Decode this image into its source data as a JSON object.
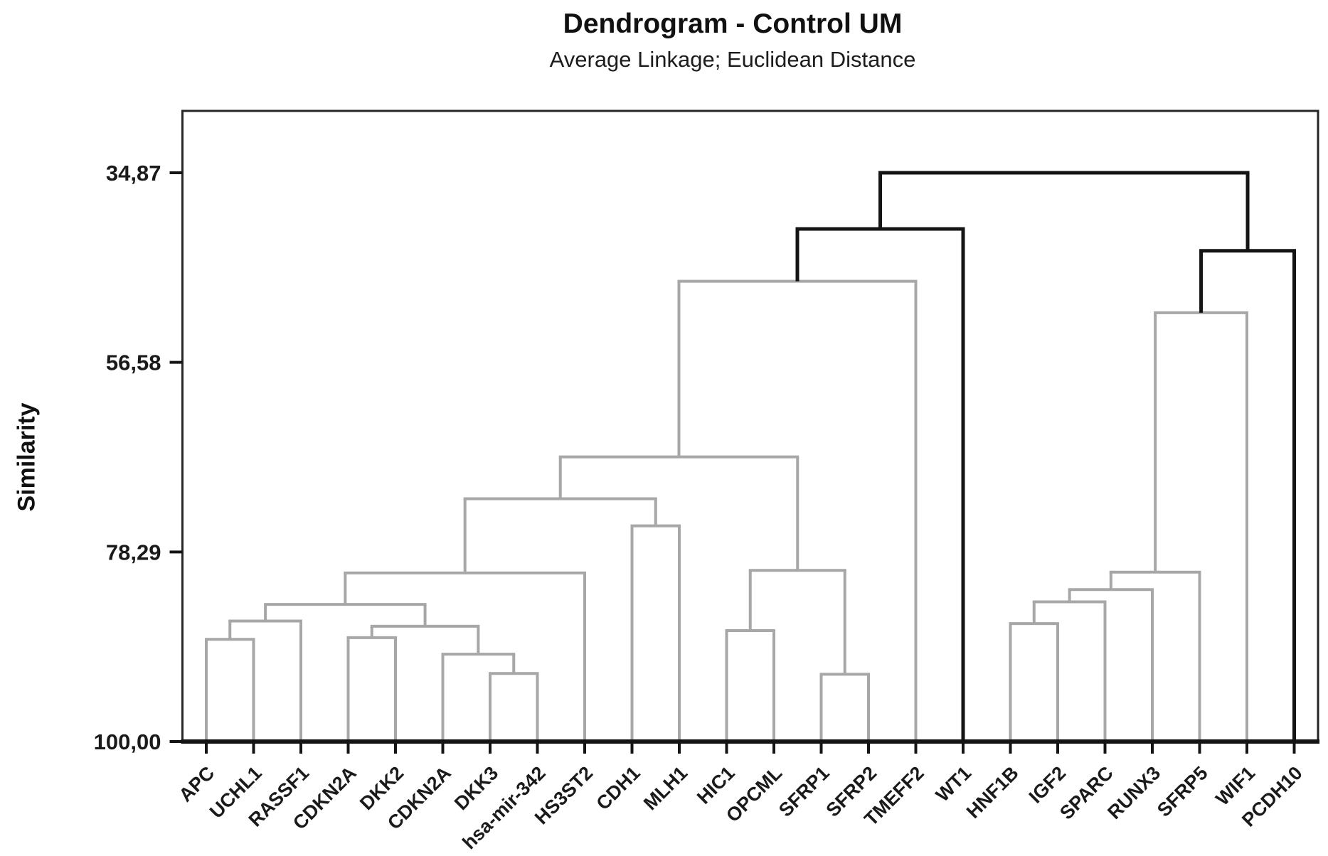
{
  "header": {
    "title": "Dendrogram - Control UM",
    "subtitle": "Average Linkage; Euclidean Distance"
  },
  "y_axis": {
    "label": "Similarity",
    "tick_labels": [
      "34,87",
      "56,58",
      "78,29",
      "100,00"
    ],
    "tick_values": [
      34.87,
      56.58,
      78.29,
      100.0
    ]
  },
  "colors": {
    "within_cluster_line": "#a7a7a7",
    "above_cut_line": "#141414",
    "border": "#262626",
    "text": "#1a1a1a",
    "background": "#ffffff"
  },
  "chart_data": {
    "type": "dendrogram",
    "title": "Dendrogram - Control UM",
    "subtitle": "Average Linkage; Euclidean Distance",
    "ylabel": "Similarity",
    "orientation": "leaves at bottom, similarity decreasing upward",
    "y_axis": {
      "top_value": 34.87,
      "bottom_value": 100.0,
      "tick_labels": [
        "34,87",
        "56,58",
        "78,29",
        "100,00"
      ],
      "tick_values": [
        34.87,
        56.58,
        78.29,
        100.0
      ]
    },
    "leaves": [
      "APC",
      "UCHL1",
      "RASSF1",
      "CDKN2A",
      "DKK2",
      "CDKN2A",
      "DKK3",
      "hsa-mir-342",
      "HS3ST2",
      "CDH1",
      "MLH1",
      "HIC1",
      "OPCML",
      "SFRP1",
      "SFRP2",
      "TMEFF2",
      "WT1",
      "HNF1B",
      "IGF2",
      "SPARC",
      "RUNX3",
      "SFRP5",
      "WIF1",
      "PCDH10"
    ],
    "merges": [
      {
        "a": 0,
        "b": 1,
        "similarity": 88.3,
        "color": "gray"
      },
      {
        "a": "m0",
        "b": 2,
        "similarity": 86.2,
        "color": "gray"
      },
      {
        "a": 3,
        "b": 4,
        "similarity": 88.1,
        "color": "gray"
      },
      {
        "a": 6,
        "b": 7,
        "similarity": 92.2,
        "color": "gray"
      },
      {
        "a": 5,
        "b": "m3",
        "similarity": 90.0,
        "color": "gray"
      },
      {
        "a": "m2",
        "b": "m4",
        "similarity": 86.8,
        "color": "gray"
      },
      {
        "a": "m1",
        "b": "m5",
        "similarity": 84.3,
        "color": "gray"
      },
      {
        "a": "m6",
        "b": 8,
        "similarity": 80.7,
        "color": "gray"
      },
      {
        "a": 9,
        "b": 10,
        "similarity": 75.3,
        "color": "gray"
      },
      {
        "a": "m7",
        "b": "m8",
        "similarity": 72.2,
        "color": "gray"
      },
      {
        "a": 11,
        "b": 12,
        "similarity": 87.3,
        "color": "gray"
      },
      {
        "a": 13,
        "b": 14,
        "similarity": 92.3,
        "color": "gray"
      },
      {
        "a": "m10",
        "b": "m11",
        "similarity": 80.4,
        "color": "gray"
      },
      {
        "a": "m9",
        "b": "m12",
        "similarity": 67.4,
        "color": "gray"
      },
      {
        "a": "m13",
        "b": 15,
        "similarity": 47.3,
        "color": "gray"
      },
      {
        "a": "m14",
        "b": 16,
        "similarity": 41.3,
        "color": "black"
      },
      {
        "a": 17,
        "b": 18,
        "similarity": 86.5,
        "color": "gray"
      },
      {
        "a": "m16",
        "b": 19,
        "similarity": 84.0,
        "color": "gray"
      },
      {
        "a": "m17",
        "b": 20,
        "similarity": 82.6,
        "color": "gray"
      },
      {
        "a": "m18",
        "b": 21,
        "similarity": 80.6,
        "color": "gray"
      },
      {
        "a": "m19",
        "b": 22,
        "similarity": 50.9,
        "color": "gray"
      },
      {
        "a": "m20",
        "b": 23,
        "similarity": 43.8,
        "color": "black"
      },
      {
        "a": "m15",
        "b": "m21",
        "similarity": 34.87,
        "color": "black"
      }
    ],
    "legend": "black lines = linkage above the cluster cut (4 clusters), gray lines = within-cluster linkage"
  }
}
